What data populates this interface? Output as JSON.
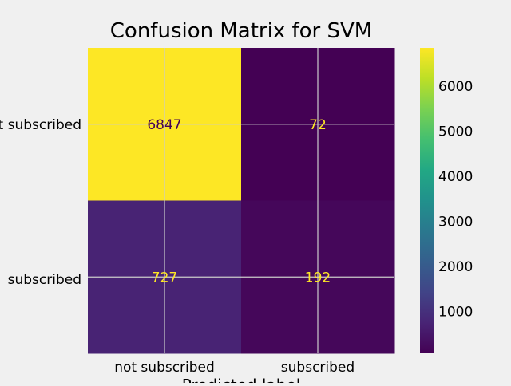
{
  "chart_data": {
    "type": "heatmap",
    "title": "Confusion Matrix for SVM",
    "xlabel": "Predicted label",
    "ylabel": "",
    "x_categories": [
      "not subscribed",
      "subscribed"
    ],
    "y_categories": [
      "not subscribed",
      "subscribed"
    ],
    "values": [
      [
        6847,
        72
      ],
      [
        727,
        192
      ]
    ],
    "colormap": "viridis",
    "colorbar": {
      "range": [
        72,
        6847
      ],
      "ticks": [
        1000,
        2000,
        3000,
        4000,
        5000,
        6000
      ]
    },
    "grid": true,
    "colors": {
      "background": "#f0f0f0",
      "grid": "#cbcbcb",
      "text_on_dark": "#fde725",
      "text_on_light": "#440154"
    }
  }
}
